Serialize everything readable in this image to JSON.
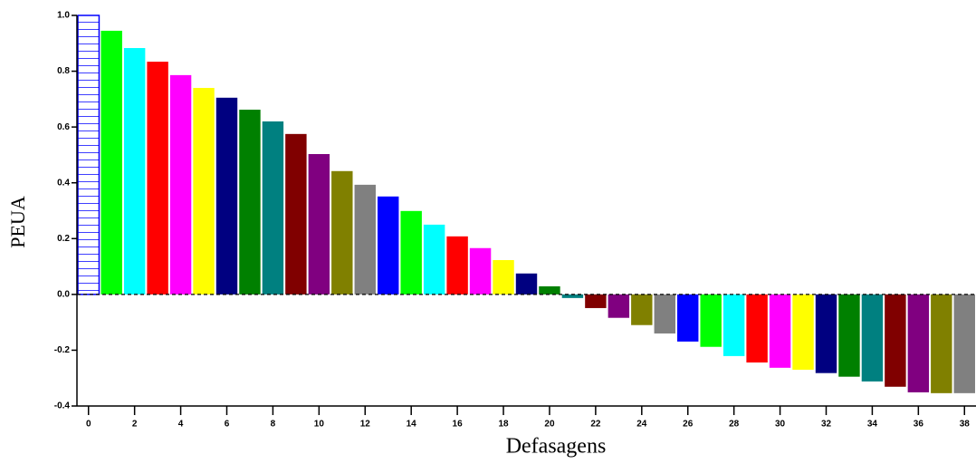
{
  "chart_data": {
    "type": "bar",
    "x_label": "Defasagens",
    "y_label": "PEUA",
    "x": [
      0,
      1,
      2,
      3,
      4,
      5,
      6,
      7,
      8,
      9,
      10,
      11,
      12,
      13,
      14,
      15,
      16,
      17,
      18,
      19,
      20,
      21,
      22,
      23,
      24,
      25,
      26,
      27,
      28,
      29,
      30,
      31,
      32,
      33,
      34,
      35,
      36,
      37,
      38
    ],
    "values": [
      1.0,
      0.945,
      0.883,
      0.834,
      0.786,
      0.74,
      0.705,
      0.662,
      0.62,
      0.575,
      0.503,
      0.442,
      0.393,
      0.351,
      0.299,
      0.25,
      0.208,
      0.166,
      0.123,
      0.075,
      0.029,
      -0.013,
      -0.049,
      -0.084,
      -0.11,
      -0.14,
      -0.169,
      -0.188,
      -0.221,
      -0.244,
      -0.263,
      -0.27,
      -0.282,
      -0.295,
      -0.312,
      -0.331,
      -0.351,
      -0.354,
      -0.354
    ],
    "colors": [
      "#0000ff",
      "#00ff00",
      "#00ffff",
      "#ff0000",
      "#ff00ff",
      "#ffff00",
      "#000080",
      "#008000",
      "#008080",
      "#800000",
      "#800080",
      "#808000",
      "#808080",
      "#0000ff",
      "#00ff00",
      "#00ffff",
      "#ff0000",
      "#ff00ff",
      "#ffff00",
      "#000080",
      "#008000",
      "#008080",
      "#800000",
      "#800080",
      "#808000",
      "#808080",
      "#0000ff",
      "#00ff00",
      "#00ffff",
      "#ff0000",
      "#ff00ff",
      "#ffff00",
      "#000080",
      "#008000",
      "#008080",
      "#800000",
      "#800080",
      "#808000",
      "#808080"
    ],
    "xlim": [
      -0.5,
      38.5
    ],
    "xticks": [
      0,
      2,
      4,
      6,
      8,
      10,
      12,
      14,
      16,
      18,
      20,
      22,
      24,
      26,
      28,
      30,
      32,
      34,
      36,
      38
    ],
    "ylim": [
      -0.4,
      1.0
    ],
    "yticks": [
      -0.4,
      -0.2,
      {
        "value": 0,
        "label": "0.0"
      },
      0.2,
      0.4,
      0.6,
      0.8,
      {
        "value": 1,
        "label": "1.0"
      }
    ]
  }
}
